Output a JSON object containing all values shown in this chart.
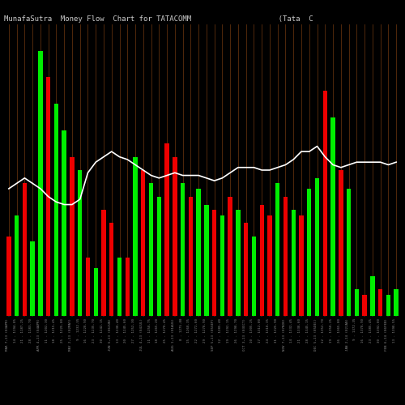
{
  "title": "MunafaSutra  Money Flow  Chart for TATACOMM                    (Tata  C",
  "bg_color": "#000000",
  "grid_color": "#8B4513",
  "line_color": "#ffffff",
  "title_color": "#cccccc",
  "title_fontsize": 6.5,
  "bar_colors": [
    "red",
    "green",
    "red",
    "green",
    "green",
    "red",
    "green",
    "green",
    "red",
    "green",
    "red",
    "green",
    "red",
    "red",
    "green",
    "red",
    "green",
    "red",
    "green",
    "green",
    "red",
    "red",
    "green",
    "red",
    "green",
    "green",
    "red",
    "green",
    "red",
    "green",
    "red",
    "green",
    "red",
    "red",
    "green",
    "red",
    "green",
    "red",
    "green",
    "green",
    "red",
    "green",
    "red",
    "green",
    "green",
    "red",
    "green",
    "red",
    "green",
    "green"
  ],
  "bar_values": [
    0.3,
    0.38,
    0.5,
    0.28,
    1.0,
    0.9,
    0.8,
    0.7,
    0.6,
    0.55,
    0.22,
    0.18,
    0.4,
    0.35,
    0.22,
    0.22,
    0.6,
    0.55,
    0.5,
    0.45,
    0.65,
    0.6,
    0.5,
    0.45,
    0.48,
    0.42,
    0.4,
    0.38,
    0.45,
    0.4,
    0.35,
    0.3,
    0.42,
    0.38,
    0.5,
    0.45,
    0.4,
    0.38,
    0.48,
    0.52,
    0.85,
    0.75,
    0.55,
    0.48,
    0.1,
    0.08,
    0.15,
    0.1,
    0.08,
    0.1
  ],
  "line_values": [
    0.48,
    0.5,
    0.52,
    0.5,
    0.48,
    0.45,
    0.43,
    0.42,
    0.42,
    0.44,
    0.54,
    0.58,
    0.6,
    0.62,
    0.6,
    0.59,
    0.57,
    0.55,
    0.53,
    0.52,
    0.53,
    0.54,
    0.53,
    0.53,
    0.53,
    0.52,
    0.51,
    0.52,
    0.54,
    0.56,
    0.56,
    0.56,
    0.55,
    0.55,
    0.56,
    0.57,
    0.59,
    0.62,
    0.62,
    0.64,
    0.6,
    0.57,
    0.56,
    0.57,
    0.58,
    0.58,
    0.58,
    0.58,
    0.57,
    0.58
  ],
  "labels": [
    "MAR 7,23 (03APR)",
    "14 - 1194.85",
    "21 - 1187.25",
    "28 - 1183.70",
    "APR 4,23 (04APR)",
    "11 - 1202.30",
    "18 - 1215.45",
    "25 - 1225.80",
    "MAY 2,23 (02MAY)",
    "9 - 1232.55",
    "16 - 1228.90",
    "23 - 1235.70",
    "30 - 1242.15",
    "JUN 6,23 (06JUN)",
    "13 - 1238.40",
    "20 - 1245.60",
    "27 - 1252.30",
    "JUL 4,23 (04JUL)",
    "11 - 1258.75",
    "18 - 1265.20",
    "25 - 1270.45",
    "AUG 1,23 (01AUG)",
    "8 - 1275.80",
    "15 - 1268.35",
    "22 - 1272.60",
    "29 - 1278.90",
    "SEP 5,23 (05SEP)",
    "12 - 1285.40",
    "19 - 1292.15",
    "26 - 1298.70",
    "OCT 3,23 (03OCT)",
    "10 - 1305.25",
    "17 - 1312.80",
    "24 - 1318.35",
    "31 - 1325.90",
    "NOV 7,23 (07NOV)",
    "14 - 1332.45",
    "21 - 1338.60",
    "28 - 1345.15",
    "DEC 5,23 (05DEC)",
    "12 - 1352.70",
    "19 - 1358.25",
    "26 - 1365.80",
    "JAN 2,24 (02JAN)",
    "9 - 1372.35",
    "16 - 1378.90",
    "23 - 1385.45",
    "30 - 1392.00",
    "FEB 6,24 (06FEB)",
    "13 - 1398.55"
  ]
}
